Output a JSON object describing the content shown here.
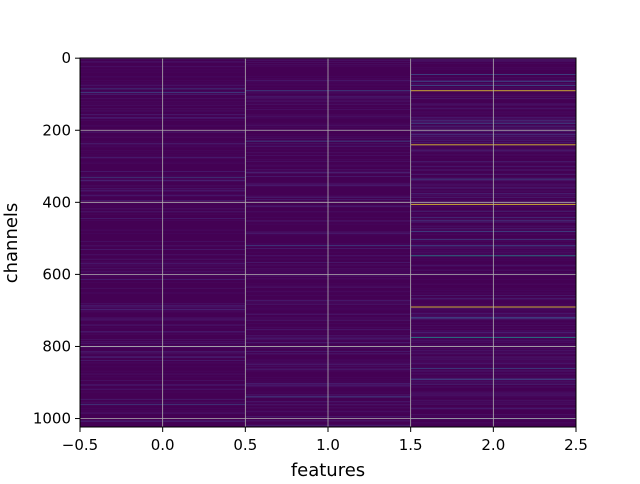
{
  "chart_data": {
    "type": "heatmap",
    "title": "",
    "xlabel": "features",
    "ylabel": "channels",
    "colormap": "viridis",
    "x": [
      0,
      1,
      2
    ],
    "x_extent": [
      -0.5,
      2.5
    ],
    "xticks": [
      -0.5,
      0.0,
      0.5,
      1.0,
      1.5,
      2.0,
      2.5
    ],
    "xtick_labels": [
      "−0.5",
      "0.0",
      "0.5",
      "1.0",
      "1.5",
      "2.0",
      "2.5"
    ],
    "y_extent": [
      1023.5,
      -0.5
    ],
    "y_inverted": true,
    "yticks": [
      0,
      200,
      400,
      600,
      800,
      1000
    ],
    "ytick_labels": [
      "0",
      "200",
      "400",
      "600",
      "800",
      "1000"
    ],
    "n_channels": 1024,
    "grid": true,
    "notable_bands": {
      "feature_2_bright_channels": [
        {
          "channel": 90,
          "level": "high"
        },
        {
          "channel": 240,
          "level": "high"
        },
        {
          "channel": 405,
          "level": "high"
        },
        {
          "channel": 548,
          "level": "medium"
        },
        {
          "channel": 690,
          "level": "high"
        },
        {
          "channel": 775,
          "level": "medium"
        },
        {
          "channel": 45,
          "level": "low"
        },
        {
          "channel": 75,
          "level": "low"
        },
        {
          "channel": 180,
          "level": "low"
        },
        {
          "channel": 335,
          "level": "low"
        },
        {
          "channel": 480,
          "level": "low"
        },
        {
          "channel": 520,
          "level": "low"
        },
        {
          "channel": 720,
          "level": "low"
        },
        {
          "channel": 860,
          "level": "low"
        },
        {
          "channel": 890,
          "level": "low"
        },
        {
          "channel": 1000,
          "level": "low"
        }
      ],
      "feature_0_faint_channels": [
        85,
        95,
        330,
        960
      ],
      "feature_1_faint_channels": [
        90,
        230,
        520,
        940
      ]
    },
    "colors": {
      "background": "#440154",
      "low": "#3b528b",
      "medium": "#21918c",
      "high": "#fde725",
      "grid": "#b0b0b0"
    }
  }
}
